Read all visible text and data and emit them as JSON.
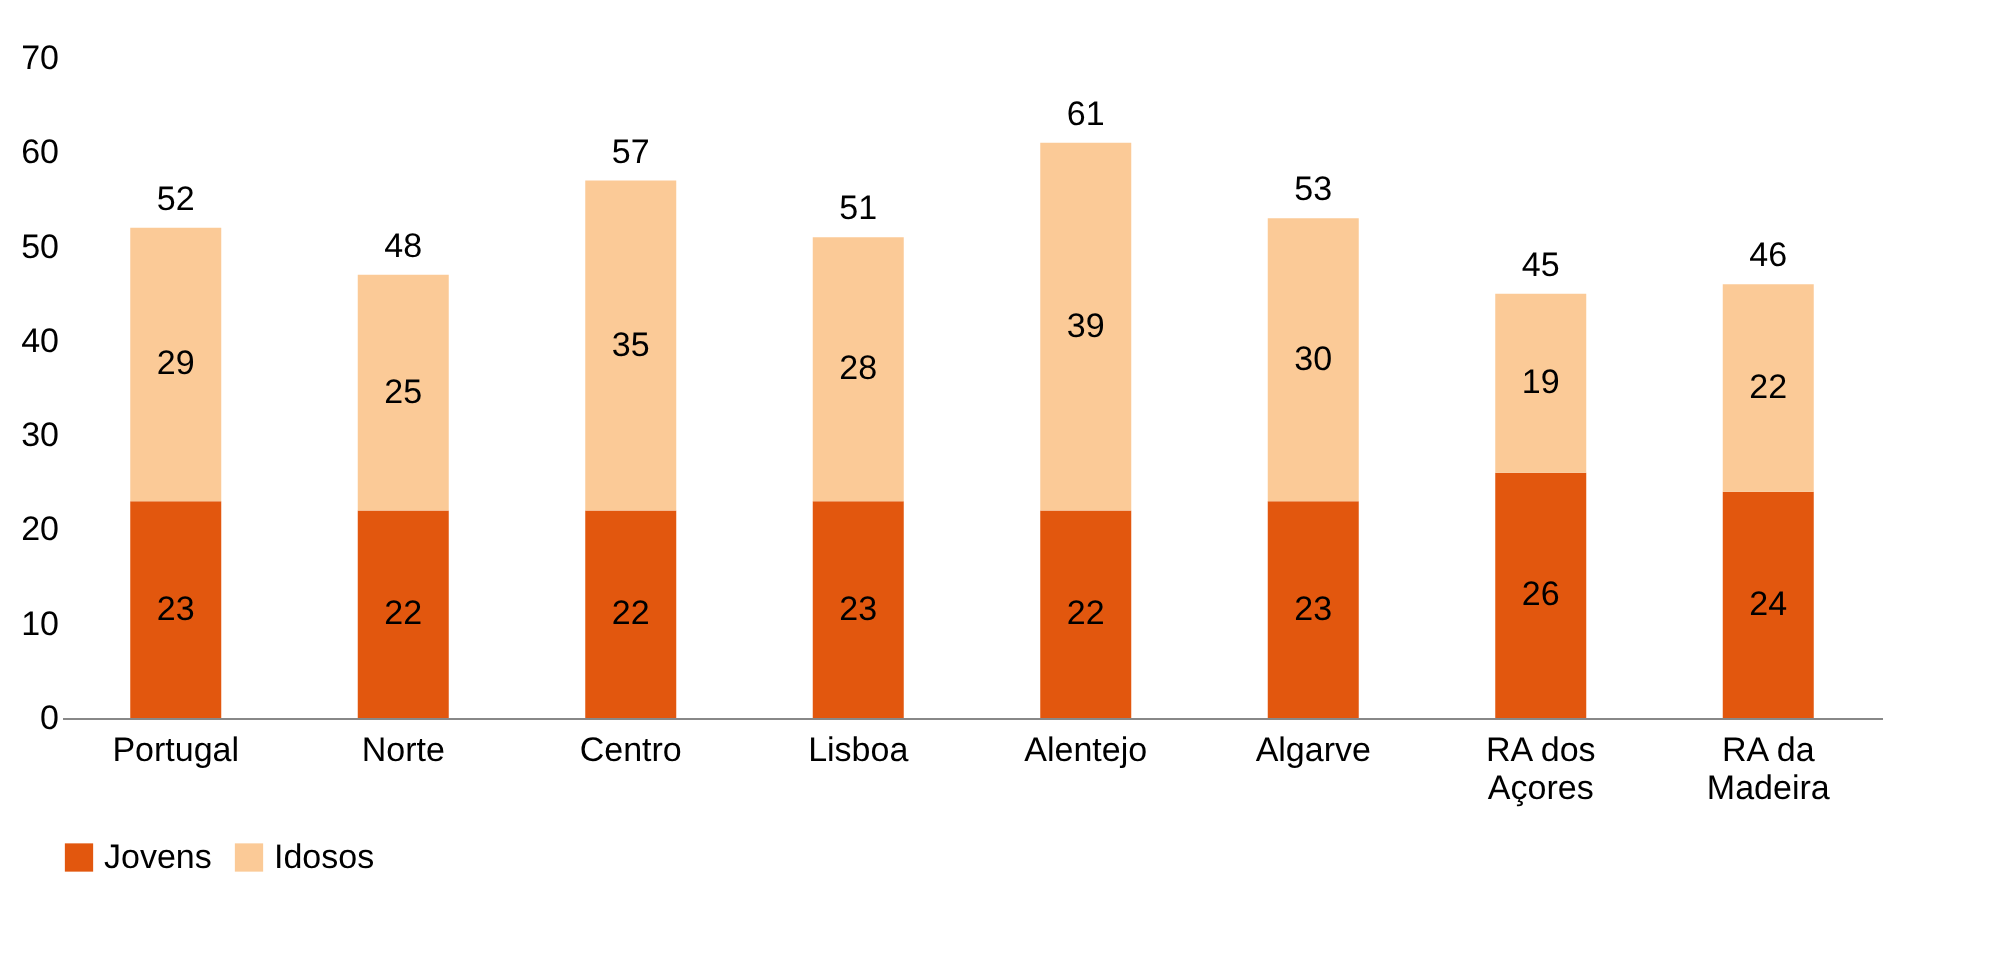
{
  "chart_data": {
    "type": "bar",
    "stacked": true,
    "categories": [
      "Portugal",
      "Norte",
      "Centro",
      "Lisboa",
      "Alentejo",
      "Algarve",
      "RA dos Açores",
      "RA da Madeira"
    ],
    "series": [
      {
        "name": "Jovens",
        "color": "#e2570e",
        "values": [
          23,
          22,
          22,
          23,
          22,
          23,
          26,
          24
        ]
      },
      {
        "name": "Idosos",
        "color": "#fbca97",
        "values": [
          29,
          25,
          35,
          28,
          39,
          30,
          19,
          22
        ]
      }
    ],
    "totals": [
      "52",
      "48",
      "57",
      "51",
      "61",
      "53",
      "45",
      "46"
    ],
    "data_labels": true,
    "ylim": [
      0,
      70
    ],
    "yticks": [
      0,
      10,
      20,
      30,
      40,
      50,
      60,
      70
    ],
    "grid": false,
    "legend": "bottom"
  }
}
